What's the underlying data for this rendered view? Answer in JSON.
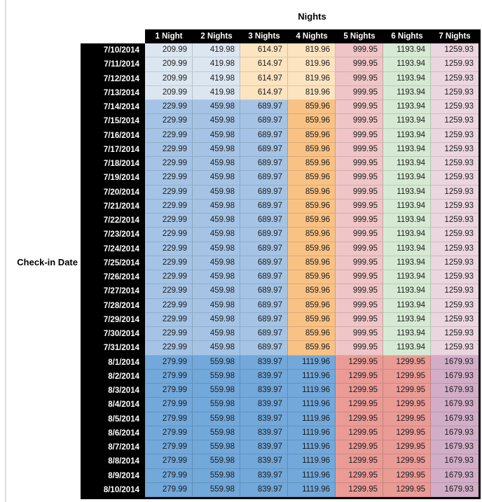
{
  "chart_data": {
    "type": "table",
    "title": "Nights",
    "row_axis_label": "Check-in Date",
    "columns": [
      "1 Night",
      "2 Nights",
      "3 Nights",
      "4 Nights",
      "5 Nights",
      "6 Nights",
      "7 Nights"
    ],
    "palette": {
      "lightBlue": "#dce6f1",
      "lightTan": "#fce4c0",
      "midBlue": "#a5c4e5",
      "orange": "#f9c285",
      "pink": "#efc5c7",
      "green": "#d6ead3",
      "lightPurple": "#ebd5df",
      "augBlue": "#72a8da",
      "augRed": "#ea9b96",
      "augPurple": "#d2adc8",
      "headerBg": "#000000",
      "headerText": "#ffffff",
      "valueText": "#1c1c1c"
    },
    "row_styles": {
      "early": [
        "lightBlue",
        "lightBlue",
        "lightTan",
        "lightTan",
        "pink",
        "green",
        "lightPurple"
      ],
      "mid": [
        "midBlue",
        "midBlue",
        "midBlue",
        "orange",
        "pink",
        "green",
        "lightPurple"
      ],
      "aug": [
        "augBlue",
        "augBlue",
        "augBlue",
        "augBlue",
        "augRed",
        "augRed",
        "augPurple"
      ]
    },
    "rows": [
      {
        "date": "7/10/2014",
        "period": "early",
        "values": [
          "209.99",
          "419.98",
          "614.97",
          "819.96",
          "999.95",
          "1193.94",
          "1259.93"
        ]
      },
      {
        "date": "7/11/2014",
        "period": "early",
        "values": [
          "209.99",
          "419.98",
          "614.97",
          "819.96",
          "999.95",
          "1193.94",
          "1259.93"
        ]
      },
      {
        "date": "7/12/2014",
        "period": "early",
        "values": [
          "209.99",
          "419.98",
          "614.97",
          "819.96",
          "999.95",
          "1193.94",
          "1259.93"
        ]
      },
      {
        "date": "7/13/2014",
        "period": "early",
        "values": [
          "209.99",
          "419.98",
          "614.97",
          "819.96",
          "999.95",
          "1193.94",
          "1259.93"
        ]
      },
      {
        "date": "7/14/2014",
        "period": "mid",
        "values": [
          "229.99",
          "459.98",
          "689.97",
          "859.96",
          "999.95",
          "1193.94",
          "1259.93"
        ]
      },
      {
        "date": "7/15/2014",
        "period": "mid",
        "values": [
          "229.99",
          "459.98",
          "689.97",
          "859.96",
          "999.95",
          "1193.94",
          "1259.93"
        ]
      },
      {
        "date": "7/16/2014",
        "period": "mid",
        "values": [
          "229.99",
          "459.98",
          "689.97",
          "859.96",
          "999.95",
          "1193.94",
          "1259.93"
        ]
      },
      {
        "date": "7/17/2014",
        "period": "mid",
        "values": [
          "229.99",
          "459.98",
          "689.97",
          "859.96",
          "999.95",
          "1193.94",
          "1259.93"
        ]
      },
      {
        "date": "7/18/2014",
        "period": "mid",
        "values": [
          "229.99",
          "459.98",
          "689.97",
          "859.96",
          "999.95",
          "1193.94",
          "1259.93"
        ]
      },
      {
        "date": "7/19/2014",
        "period": "mid",
        "values": [
          "229.99",
          "459.98",
          "689.97",
          "859.96",
          "999.95",
          "1193.94",
          "1259.93"
        ]
      },
      {
        "date": "7/20/2014",
        "period": "mid",
        "values": [
          "229.99",
          "459.98",
          "689.97",
          "859.96",
          "999.95",
          "1193.94",
          "1259.93"
        ]
      },
      {
        "date": "7/21/2014",
        "period": "mid",
        "values": [
          "229.99",
          "459.98",
          "689.97",
          "859.96",
          "999.95",
          "1193.94",
          "1259.93"
        ]
      },
      {
        "date": "7/22/2014",
        "period": "mid",
        "values": [
          "229.99",
          "459.98",
          "689.97",
          "859.96",
          "999.95",
          "1193.94",
          "1259.93"
        ]
      },
      {
        "date": "7/23/2014",
        "period": "mid",
        "values": [
          "229.99",
          "459.98",
          "689.97",
          "859.96",
          "999.95",
          "1193.94",
          "1259.93"
        ]
      },
      {
        "date": "7/24/2014",
        "period": "mid",
        "values": [
          "229.99",
          "459.98",
          "689.97",
          "859.96",
          "999.95",
          "1193.94",
          "1259.93"
        ]
      },
      {
        "date": "7/25/2014",
        "period": "mid",
        "values": [
          "229.99",
          "459.98",
          "689.97",
          "859.96",
          "999.95",
          "1193.94",
          "1259.93"
        ]
      },
      {
        "date": "7/26/2014",
        "period": "mid",
        "values": [
          "229.99",
          "459.98",
          "689.97",
          "859.96",
          "999.95",
          "1193.94",
          "1259.93"
        ]
      },
      {
        "date": "7/27/2014",
        "period": "mid",
        "values": [
          "229.99",
          "459.98",
          "689.97",
          "859.96",
          "999.95",
          "1193.94",
          "1259.93"
        ]
      },
      {
        "date": "7/28/2014",
        "period": "mid",
        "values": [
          "229.99",
          "459.98",
          "689.97",
          "859.96",
          "999.95",
          "1193.94",
          "1259.93"
        ]
      },
      {
        "date": "7/29/2014",
        "period": "mid",
        "values": [
          "229.99",
          "459.98",
          "689.97",
          "859.96",
          "999.95",
          "1193.94",
          "1259.93"
        ]
      },
      {
        "date": "7/30/2014",
        "period": "mid",
        "values": [
          "229.99",
          "459.98",
          "689.97",
          "859.96",
          "999.95",
          "1193.94",
          "1259.93"
        ]
      },
      {
        "date": "7/31/2014",
        "period": "mid",
        "values": [
          "229.99",
          "459.98",
          "689.97",
          "859.96",
          "999.95",
          "1193.94",
          "1259.93"
        ]
      },
      {
        "date": "8/1/2014",
        "period": "aug",
        "values": [
          "279.99",
          "559.98",
          "839.97",
          "1119.96",
          "1299.95",
          "1299.95",
          "1679.93"
        ]
      },
      {
        "date": "8/2/2014",
        "period": "aug",
        "values": [
          "279.99",
          "559.98",
          "839.97",
          "1119.96",
          "1299.95",
          "1299.95",
          "1679.93"
        ]
      },
      {
        "date": "8/3/2014",
        "period": "aug",
        "values": [
          "279.99",
          "559.98",
          "839.97",
          "1119.96",
          "1299.95",
          "1299.95",
          "1679.93"
        ]
      },
      {
        "date": "8/4/2014",
        "period": "aug",
        "values": [
          "279.99",
          "559.98",
          "839.97",
          "1119.96",
          "1299.95",
          "1299.95",
          "1679.93"
        ]
      },
      {
        "date": "8/5/2014",
        "period": "aug",
        "values": [
          "279.99",
          "559.98",
          "839.97",
          "1119.96",
          "1299.95",
          "1299.95",
          "1679.93"
        ]
      },
      {
        "date": "8/6/2014",
        "period": "aug",
        "values": [
          "279.99",
          "559.98",
          "839.97",
          "1119.96",
          "1299.95",
          "1299.95",
          "1679.93"
        ]
      },
      {
        "date": "8/7/2014",
        "period": "aug",
        "values": [
          "279.99",
          "559.98",
          "839.97",
          "1119.96",
          "1299.95",
          "1299.95",
          "1679.93"
        ]
      },
      {
        "date": "8/8/2014",
        "period": "aug",
        "values": [
          "279.99",
          "559.98",
          "839.97",
          "1119.96",
          "1299.95",
          "1299.95",
          "1679.93"
        ]
      },
      {
        "date": "8/9/2014",
        "period": "aug",
        "values": [
          "279.99",
          "559.98",
          "839.97",
          "1119.96",
          "1299.95",
          "1299.95",
          "1679.93"
        ]
      },
      {
        "date": "8/10/2014",
        "period": "aug",
        "values": [
          "279.99",
          "559.98",
          "839.97",
          "1119.96",
          "1299.95",
          "1299.95",
          "1679.93"
        ]
      }
    ]
  }
}
